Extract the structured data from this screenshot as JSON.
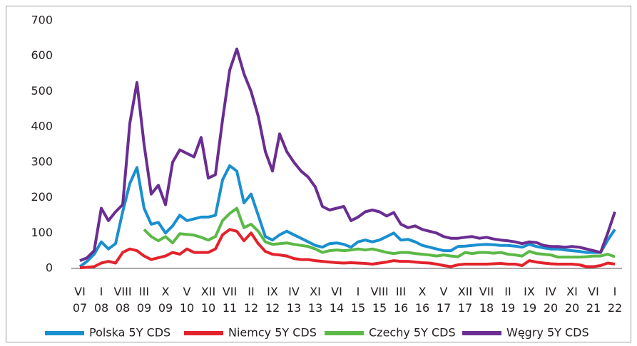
{
  "chart_data": {
    "type": "line",
    "categories": [
      "VI\n07",
      null,
      null,
      "I\n08",
      null,
      null,
      "VIII\n08",
      null,
      null,
      "III\n09",
      null,
      null,
      "X\n09",
      null,
      null,
      "V\n10",
      null,
      null,
      "XII\n10",
      null,
      null,
      "VII\n11",
      null,
      null,
      "II\n12",
      null,
      null,
      "IX\n12",
      null,
      null,
      "IV\n13",
      null,
      null,
      "XI\n13",
      null,
      null,
      "VI\n14",
      null,
      null,
      "I\n15",
      null,
      null,
      "VIII\n15",
      null,
      null,
      "III\n16",
      null,
      null,
      "X\n16",
      null,
      null,
      "V\n17",
      null,
      null,
      "XII\n17",
      null,
      null,
      "VII\n18",
      null,
      null,
      "II\n19",
      null,
      null,
      "IX\n19",
      null,
      null,
      "IV\n20",
      null,
      null,
      "XI\n20",
      null,
      null,
      "VI\n21",
      null,
      null,
      "I\n22"
    ],
    "series": [
      {
        "name": "Polska 5Y CDS",
        "color": "#1a8fd0",
        "values": [
          5,
          20,
          40,
          75,
          55,
          70,
          160,
          240,
          285,
          170,
          125,
          130,
          100,
          120,
          150,
          135,
          140,
          145,
          145,
          150,
          250,
          290,
          275,
          185,
          210,
          150,
          90,
          80,
          95,
          105,
          95,
          85,
          75,
          65,
          60,
          70,
          72,
          68,
          60,
          75,
          80,
          75,
          80,
          90,
          100,
          80,
          82,
          75,
          65,
          60,
          55,
          50,
          50,
          62,
          63,
          65,
          67,
          68,
          67,
          65,
          65,
          63,
          60,
          68,
          62,
          58,
          55,
          55,
          52,
          50,
          48,
          45,
          45,
          45,
          80,
          110
        ]
      },
      {
        "name": "Niemcy 5Y CDS",
        "color": "#e3232c",
        "values": [
          2,
          3,
          5,
          15,
          20,
          15,
          45,
          55,
          50,
          35,
          25,
          30,
          35,
          45,
          40,
          55,
          45,
          45,
          45,
          55,
          95,
          110,
          105,
          78,
          100,
          70,
          48,
          40,
          38,
          35,
          28,
          25,
          25,
          22,
          20,
          18,
          16,
          15,
          16,
          15,
          14,
          12,
          15,
          18,
          22,
          20,
          20,
          18,
          16,
          15,
          12,
          8,
          5,
          10,
          12,
          12,
          12,
          12,
          13,
          14,
          12,
          12,
          8,
          22,
          18,
          15,
          13,
          12,
          12,
          12,
          10,
          5,
          5,
          8,
          15,
          12
        ]
      },
      {
        "name": "Czechy 5Y CDS",
        "color": "#5bb947",
        "values": [
          null,
          null,
          null,
          null,
          null,
          null,
          null,
          null,
          null,
          110,
          90,
          78,
          90,
          72,
          98,
          96,
          94,
          88,
          80,
          90,
          135,
          155,
          170,
          115,
          125,
          105,
          75,
          68,
          70,
          72,
          68,
          65,
          62,
          55,
          45,
          50,
          52,
          50,
          52,
          55,
          52,
          55,
          50,
          45,
          42,
          45,
          45,
          42,
          40,
          38,
          35,
          38,
          35,
          33,
          45,
          42,
          45,
          45,
          43,
          45,
          40,
          38,
          35,
          48,
          42,
          40,
          38,
          32,
          32,
          32,
          32,
          33,
          35,
          35,
          40,
          33
        ]
      },
      {
        "name": "Węgry 5Y CDS",
        "color": "#6a2d91",
        "values": [
          22,
          30,
          50,
          170,
          135,
          160,
          180,
          410,
          525,
          350,
          210,
          235,
          180,
          300,
          335,
          325,
          315,
          370,
          255,
          265,
          420,
          560,
          620,
          550,
          500,
          430,
          330,
          275,
          380,
          330,
          300,
          275,
          258,
          230,
          175,
          165,
          170,
          175,
          135,
          145,
          160,
          165,
          160,
          148,
          158,
          125,
          115,
          120,
          110,
          105,
          100,
          90,
          85,
          85,
          88,
          90,
          85,
          88,
          83,
          80,
          78,
          75,
          70,
          75,
          73,
          65,
          62,
          62,
          60,
          62,
          60,
          55,
          50,
          45,
          100,
          160
        ]
      }
    ],
    "ylim": [
      0,
      700
    ],
    "yticks": [
      0,
      100,
      200,
      300,
      400,
      500,
      600,
      700
    ],
    "legend": "bottom"
  }
}
